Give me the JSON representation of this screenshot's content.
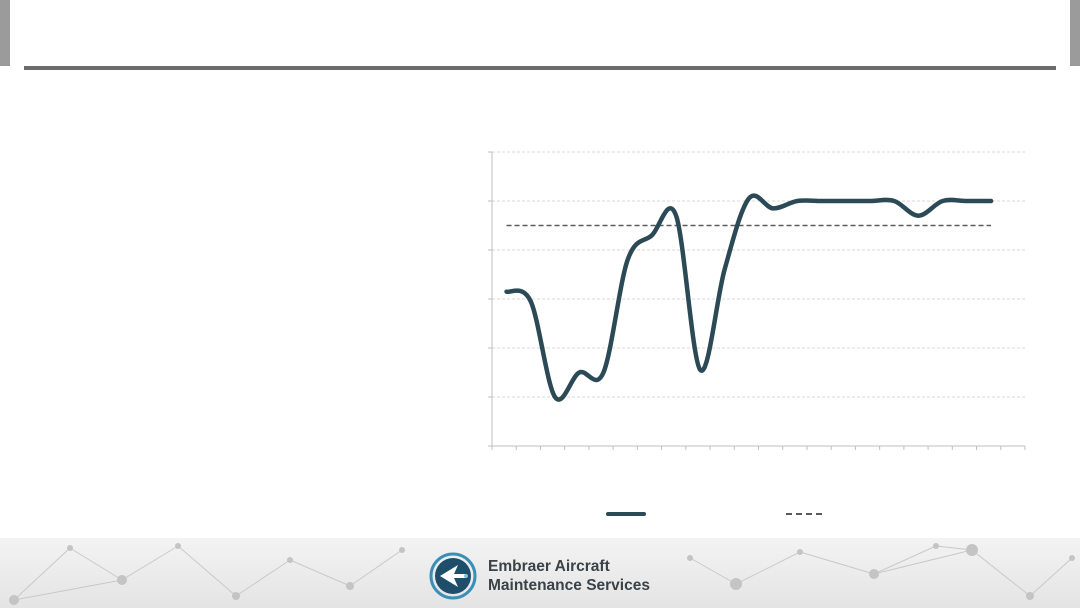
{
  "colors": {
    "series_line": "#2c4a56",
    "reference_line": "#5a5a5a",
    "grid": "#d9d9d9",
    "axis": "#bfbfbf",
    "header_rule": "#6b6b6b"
  },
  "chart_data": {
    "type": "line",
    "title": "",
    "xlabel": "",
    "ylabel": "",
    "ylim": [
      0,
      6
    ],
    "grid": true,
    "legend_placement": "bottom",
    "x": [
      1,
      2,
      3,
      4,
      5,
      6,
      7,
      8,
      9,
      10,
      11,
      12,
      13,
      14,
      15,
      16,
      17,
      18,
      19,
      20,
      21
    ],
    "series": [
      {
        "values": [
          3.15,
          2.95,
          1.0,
          1.5,
          1.5,
          3.8,
          4.3,
          4.7,
          1.55,
          3.6,
          5.05,
          4.85,
          5.0,
          5.0,
          5.0,
          5.0,
          5.0,
          4.7,
          5.0,
          5.0,
          5.0
        ]
      },
      {
        "values": [
          4.5,
          4.5,
          4.5,
          4.5,
          4.5,
          4.5,
          4.5,
          4.5,
          4.5,
          4.5,
          4.5,
          4.5,
          4.5,
          4.5,
          4.5,
          4.5,
          4.5,
          4.5,
          4.5,
          4.5,
          4.5
        ]
      }
    ]
  },
  "footer": {
    "brand_line1": "Embraer Aircraft",
    "brand_line2": "Maintenance Services",
    "logo_icon": "embraer-logo-icon"
  }
}
